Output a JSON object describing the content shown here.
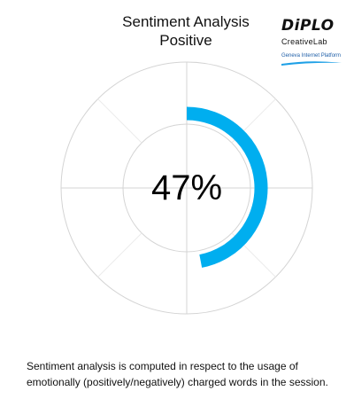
{
  "chart_data": {
    "type": "radial-progress",
    "title": "Sentiment Analysis",
    "subtitle": "Positive",
    "value": 47,
    "max": 100,
    "value_label": "47%",
    "grid": true,
    "colors": {
      "arc": "#00aeef",
      "grid": "#d4d4d4"
    }
  },
  "logo": {
    "brand": "DiPLO",
    "sub": "CreativeLab",
    "platform": "Geneva Internet Platform"
  },
  "note": "Sentiment analysis is computed in respect to the usage of emotionally (positively/negatively) charged words in the session."
}
